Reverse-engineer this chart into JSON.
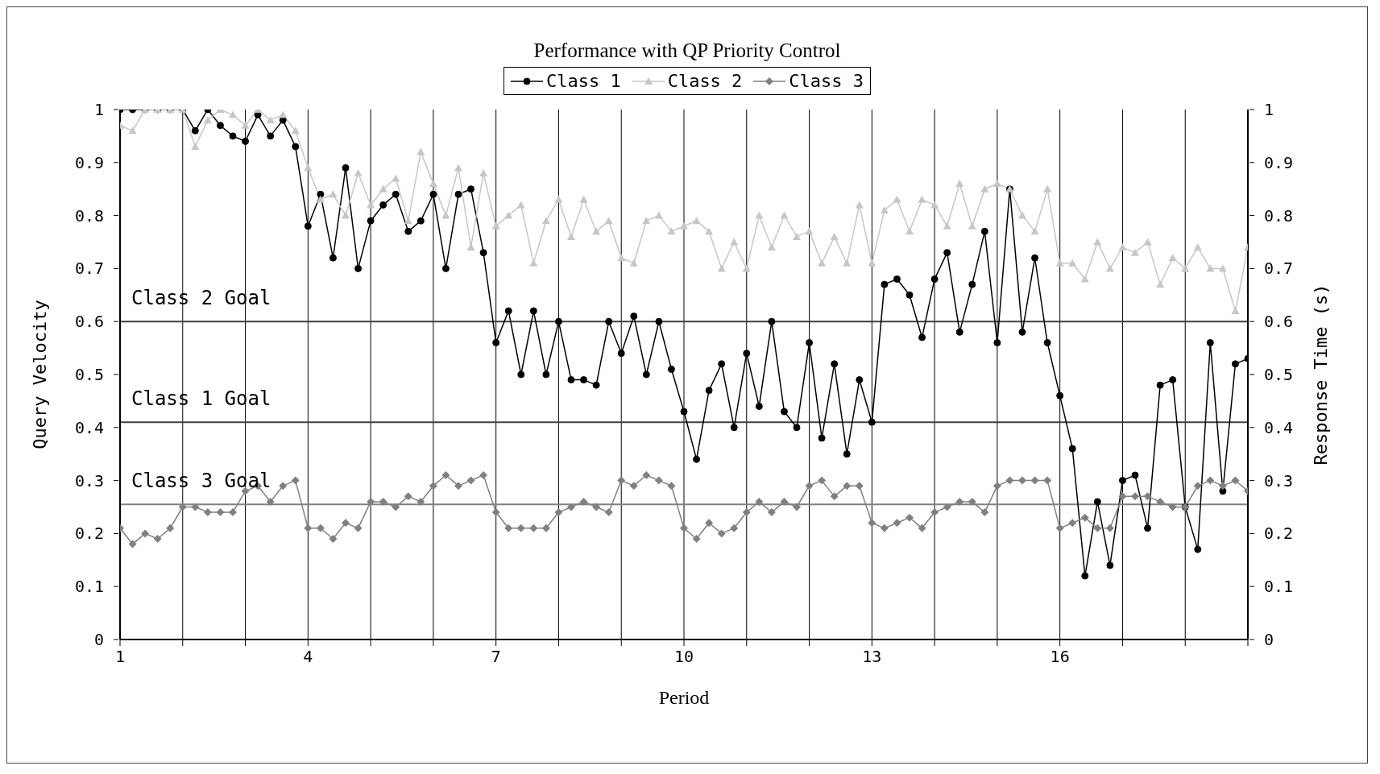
{
  "chart_data": {
    "type": "line",
    "title": "Performance with QP Priority Control",
    "xlabel": "Period",
    "ylabel": "Query Velocity",
    "y2label": "Response Time (s)",
    "x": [
      1,
      1.2,
      1.4,
      1.6,
      1.8,
      2,
      2.2,
      2.4,
      2.6,
      2.8,
      3,
      3.2,
      3.4,
      3.6,
      3.8,
      4,
      4.2,
      4.4,
      4.6,
      4.8,
      5,
      5.2,
      5.4,
      5.6,
      5.8,
      6,
      6.2,
      6.4,
      6.6,
      6.8,
      7,
      7.2,
      7.4,
      7.6,
      7.8,
      8,
      8.2,
      8.4,
      8.6,
      8.8,
      9,
      9.2,
      9.4,
      9.6,
      9.8,
      10,
      10.2,
      10.4,
      10.6,
      10.8,
      11,
      11.2,
      11.4,
      11.6,
      11.8,
      12,
      12.2,
      12.4,
      12.6,
      12.8,
      13,
      13.2,
      13.4,
      13.6,
      13.8,
      14,
      14.2,
      14.4,
      14.6,
      14.8,
      15,
      15.2,
      15.4,
      15.6,
      15.8,
      16,
      16.2,
      16.4,
      16.6,
      16.8,
      17,
      17.2,
      17.4,
      17.6,
      17.8,
      18,
      18.2,
      18.4,
      18.6,
      18.8,
      19
    ],
    "series": [
      {
        "name": "Class 1",
        "color": "#000000",
        "marker": "circle",
        "values": [
          1,
          1,
          1,
          1,
          1,
          1,
          0.96,
          1,
          0.97,
          0.95,
          0.94,
          0.99,
          0.95,
          0.98,
          0.93,
          0.78,
          0.84,
          0.72,
          0.89,
          0.7,
          0.79,
          0.82,
          0.84,
          0.77,
          0.79,
          0.84,
          0.7,
          0.84,
          0.85,
          0.73,
          0.56,
          0.62,
          0.5,
          0.62,
          0.5,
          0.6,
          0.49,
          0.49,
          0.48,
          0.6,
          0.54,
          0.61,
          0.5,
          0.6,
          0.51,
          0.43,
          0.34,
          0.47,
          0.52,
          0.4,
          0.54,
          0.44,
          0.6,
          0.43,
          0.4,
          0.56,
          0.38,
          0.52,
          0.35,
          0.49,
          0.41,
          0.67,
          0.68,
          0.65,
          0.57,
          0.68,
          0.73,
          0.58,
          0.67,
          0.77,
          0.56,
          0.85,
          0.58,
          0.72,
          0.56,
          0.46,
          0.36,
          0.12,
          0.26,
          0.14,
          0.3,
          0.31,
          0.21,
          0.48,
          0.49,
          0.25,
          0.17,
          0.56,
          0.28,
          0.52,
          0.53
        ]
      },
      {
        "name": "Class 2",
        "color": "#c8c4cc",
        "marker": "triangle",
        "values": [
          0.97,
          0.96,
          1,
          1,
          1,
          1,
          0.93,
          0.98,
          1,
          0.99,
          0.97,
          1,
          0.98,
          0.99,
          0.96,
          0.89,
          0.83,
          0.84,
          0.8,
          0.88,
          0.82,
          0.85,
          0.87,
          0.79,
          0.92,
          0.86,
          0.8,
          0.89,
          0.74,
          0.88,
          0.78,
          0.8,
          0.82,
          0.71,
          0.79,
          0.83,
          0.76,
          0.83,
          0.77,
          0.79,
          0.72,
          0.71,
          0.79,
          0.8,
          0.77,
          0.78,
          0.79,
          0.77,
          0.7,
          0.75,
          0.7,
          0.8,
          0.74,
          0.8,
          0.76,
          0.77,
          0.71,
          0.76,
          0.71,
          0.82,
          0.71,
          0.81,
          0.83,
          0.77,
          0.83,
          0.82,
          0.78,
          0.86,
          0.78,
          0.85,
          0.86,
          0.85,
          0.8,
          0.77,
          0.85,
          0.71,
          0.71,
          0.68,
          0.75,
          0.7,
          0.74,
          0.73,
          0.75,
          0.67,
          0.72,
          0.7,
          0.74,
          0.7,
          0.7,
          0.62,
          0.74
        ]
      },
      {
        "name": "Class 3",
        "color": "#808080",
        "marker": "diamond",
        "values": [
          0.21,
          0.18,
          0.2,
          0.19,
          0.21,
          0.25,
          0.25,
          0.24,
          0.24,
          0.24,
          0.28,
          0.29,
          0.26,
          0.29,
          0.3,
          0.21,
          0.21,
          0.19,
          0.22,
          0.21,
          0.26,
          0.26,
          0.25,
          0.27,
          0.26,
          0.29,
          0.31,
          0.29,
          0.3,
          0.31,
          0.24,
          0.21,
          0.21,
          0.21,
          0.21,
          0.24,
          0.25,
          0.26,
          0.25,
          0.24,
          0.3,
          0.29,
          0.31,
          0.3,
          0.29,
          0.21,
          0.19,
          0.22,
          0.2,
          0.21,
          0.24,
          0.26,
          0.24,
          0.26,
          0.25,
          0.29,
          0.3,
          0.27,
          0.29,
          0.29,
          0.22,
          0.21,
          0.22,
          0.23,
          0.21,
          0.24,
          0.25,
          0.26,
          0.26,
          0.24,
          0.29,
          0.3,
          0.3,
          0.3,
          0.3,
          0.21,
          0.22,
          0.23,
          0.21,
          0.21,
          0.27,
          0.27,
          0.27,
          0.26,
          0.25,
          0.25,
          0.29,
          0.3,
          0.29,
          0.3,
          0.28
        ]
      }
    ],
    "xlim": [
      1,
      19
    ],
    "xticks": [
      1,
      {
        "value": 2,
        "label": null
      },
      {
        "value": 3,
        "label": null
      },
      4,
      {
        "value": 5,
        "label": null
      },
      {
        "value": 6,
        "label": null
      },
      7,
      {
        "value": 8,
        "label": null
      },
      {
        "value": 9,
        "label": null
      },
      10,
      {
        "value": 11,
        "label": null
      },
      {
        "value": 12,
        "label": null
      },
      13,
      {
        "value": 14,
        "label": null
      },
      {
        "value": 15,
        "label": null
      },
      16,
      {
        "value": 17,
        "label": null
      },
      {
        "value": 18,
        "label": null
      },
      {
        "value": 19,
        "label": null
      }
    ],
    "ylim": [
      0,
      1
    ],
    "yticks": [
      0,
      0.1,
      0.2,
      0.3,
      0.4,
      0.5,
      0.6,
      0.7,
      0.8,
      0.9,
      1
    ],
    "y2lim": [
      0,
      1
    ],
    "y2ticks": [
      0,
      0.1,
      0.2,
      0.3,
      0.4,
      0.5,
      0.6,
      0.7,
      0.8,
      0.9,
      1
    ],
    "ref_lines": [
      {
        "axis": "y",
        "value": 0.6,
        "label": "Class 2 Goal",
        "color": "#404040"
      },
      {
        "axis": "y",
        "value": 0.41,
        "label": "Class 1 Goal",
        "color": "#404040"
      },
      {
        "axis": "y",
        "value": 0.255,
        "label": "Class 3 Goal",
        "color": "#808080"
      }
    ],
    "grid": "x",
    "legend": "top",
    "line_style": "solid"
  }
}
